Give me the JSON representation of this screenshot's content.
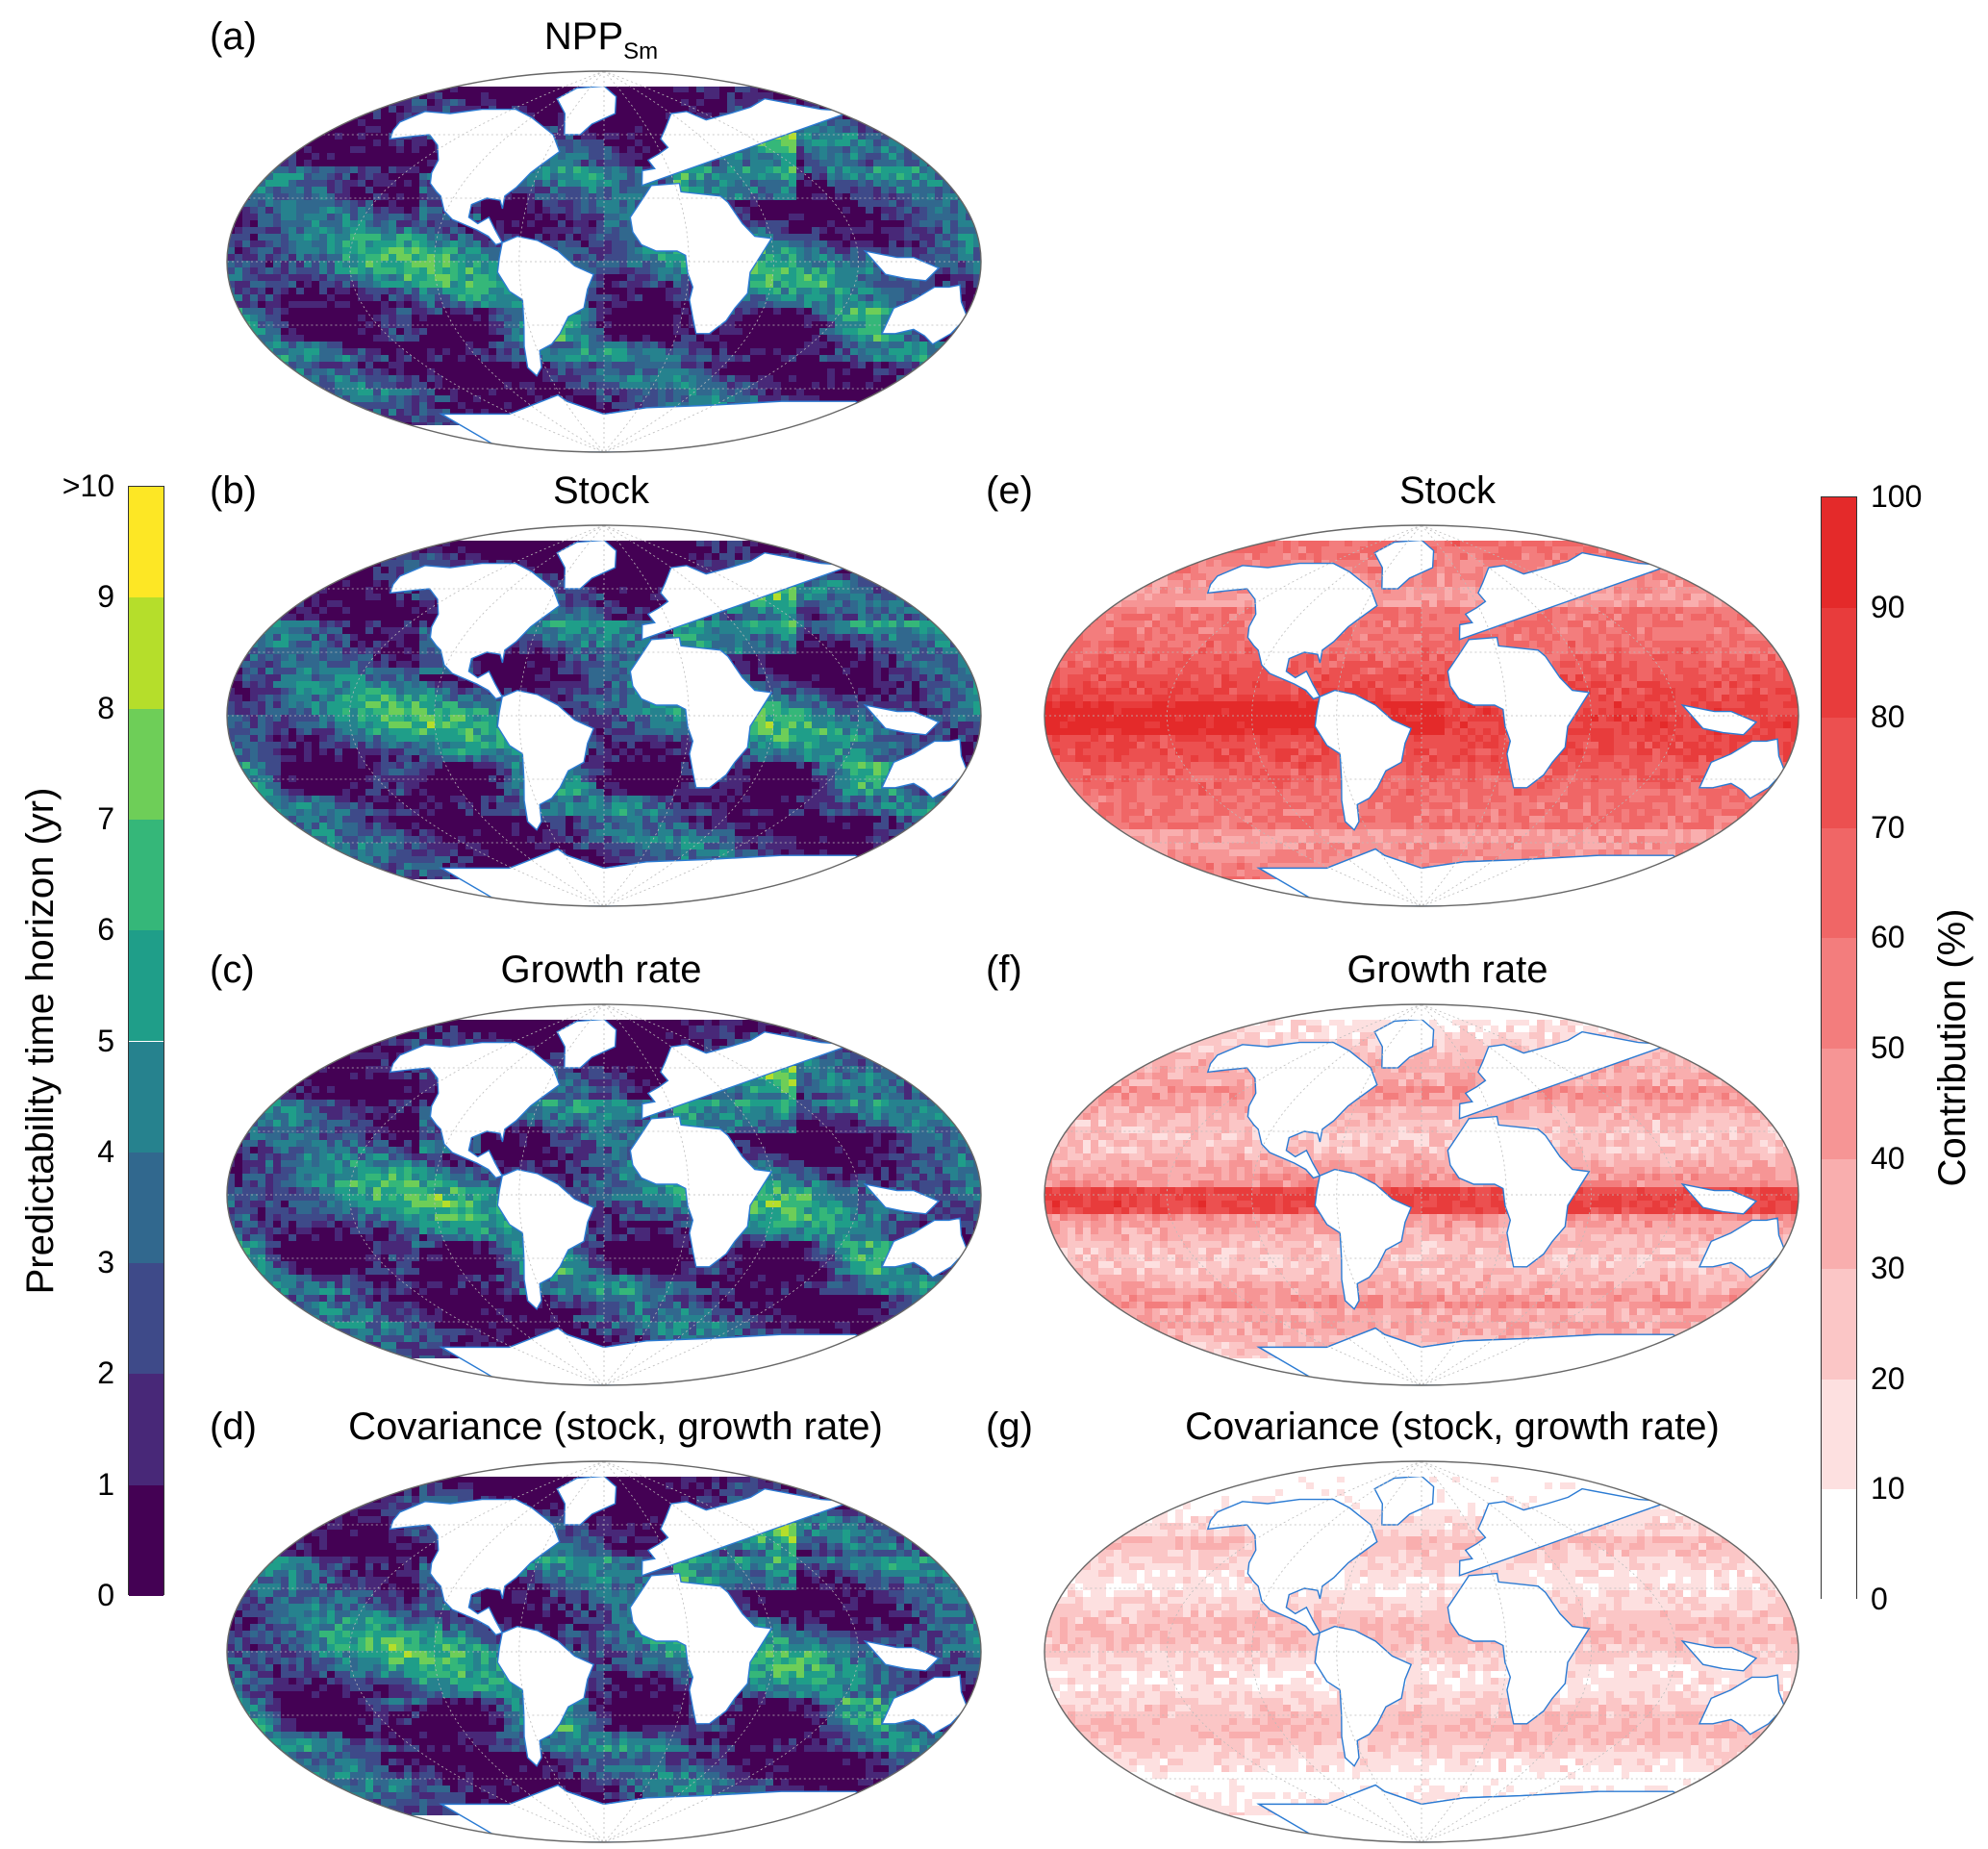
{
  "panels": [
    {
      "id": "a",
      "label": "(a)",
      "title_main": "NPP",
      "title_sub": "Sm",
      "variant": "viridis"
    },
    {
      "id": "b",
      "label": "(b)",
      "title_main": "Stock",
      "title_sub": "",
      "variant": "viridis"
    },
    {
      "id": "c",
      "label": "(c)",
      "title_main": "Growth rate",
      "title_sub": "",
      "variant": "viridis"
    },
    {
      "id": "d",
      "label": "(d)",
      "title_main": "Covariance (stock, growth rate)",
      "title_sub": "",
      "variant": "viridis"
    },
    {
      "id": "e",
      "label": "(e)",
      "title_main": "Stock",
      "title_sub": "",
      "variant": "reds_high"
    },
    {
      "id": "f",
      "label": "(f)",
      "title_main": "Growth rate",
      "title_sub": "",
      "variant": "reds_mid"
    },
    {
      "id": "g",
      "label": "(g)",
      "title_main": "Covariance (stock, growth rate)",
      "title_sub": "",
      "variant": "reds_low"
    }
  ],
  "colorbar_left": {
    "label": "Predictability time horizon (yr)",
    "ticks": [
      "0",
      "1",
      "2",
      "3",
      "4",
      "5",
      "6",
      "7",
      "8",
      "9",
      ">10"
    ],
    "colors": [
      "#440154",
      "#482878",
      "#3e4a89",
      "#31688e",
      "#26828e",
      "#1f9e89",
      "#35b779",
      "#6ece58",
      "#b5de2b",
      "#fde725"
    ]
  },
  "colorbar_right": {
    "label": "Contribution (%)",
    "ticks": [
      "0",
      "10",
      "20",
      "30",
      "40",
      "50",
      "60",
      "70",
      "80",
      "90",
      "100"
    ],
    "colors": [
      "#ffffff",
      "#fde0e0",
      "#fbc6c6",
      "#f9aeae",
      "#f69595",
      "#f37d7d",
      "#f06666",
      "#ec5050",
      "#e83c3c",
      "#e42a2a"
    ]
  },
  "colors": {
    "coastline": "#2b7bd3",
    "land": "#ffffff",
    "frame": "#666666",
    "grid": "#bbbbbb"
  }
}
